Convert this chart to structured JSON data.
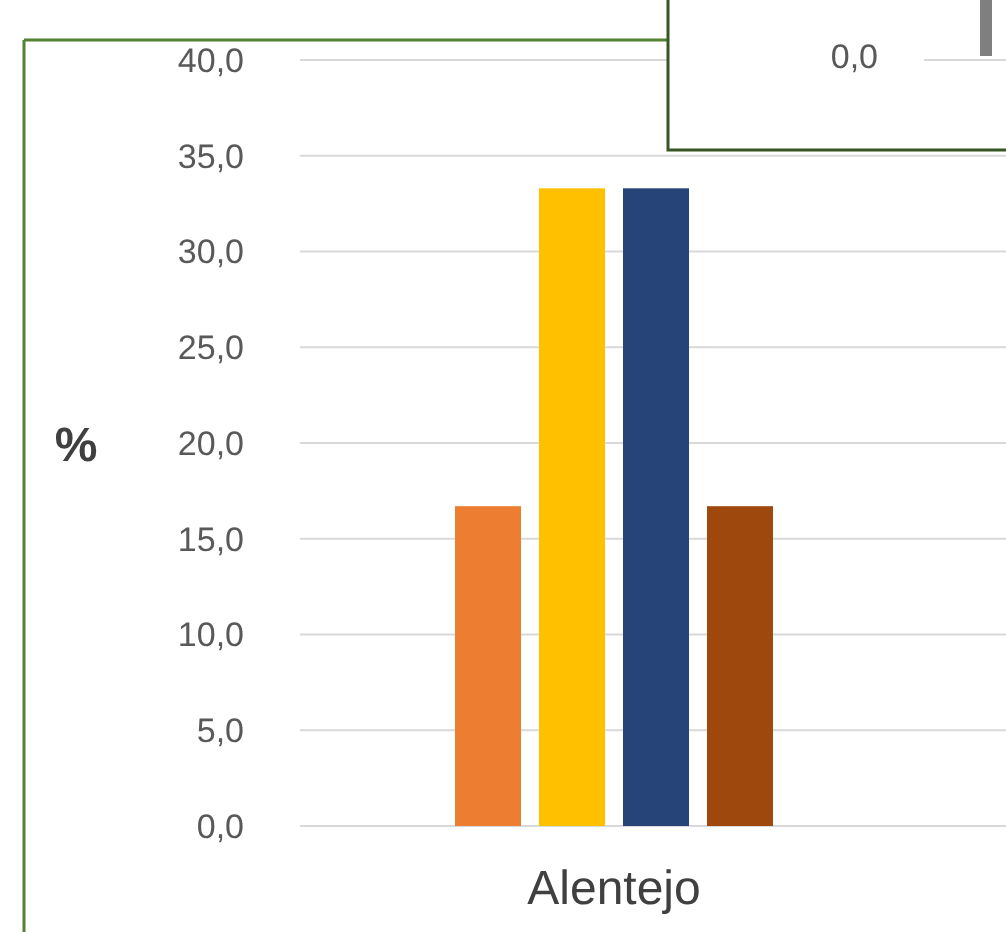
{
  "chart_data": {
    "type": "bar",
    "categories": [
      "Alentejo"
    ],
    "ylabel": "%",
    "series": [
      {
        "color": "#ed7d31",
        "values": [
          16.7
        ]
      },
      {
        "color": "#ffc000",
        "values": [
          33.3
        ]
      },
      {
        "color": "#264478",
        "values": [
          33.3
        ]
      },
      {
        "color": "#9e480e",
        "values": [
          16.7
        ]
      }
    ],
    "ylim": [
      0,
      40
    ],
    "yticks": [
      {
        "value": 0,
        "label": "0,0"
      },
      {
        "value": 5,
        "label": "5,0"
      },
      {
        "value": 10,
        "label": "10,0"
      },
      {
        "value": 15,
        "label": "15,0"
      },
      {
        "value": 20,
        "label": "20,0"
      },
      {
        "value": 25,
        "label": "25,0"
      },
      {
        "value": 30,
        "label": "30,0"
      },
      {
        "value": 35,
        "label": "35,0"
      },
      {
        "value": 40,
        "label": "40,0"
      }
    ],
    "grid": "y",
    "annotations": [
      "0,0"
    ]
  }
}
